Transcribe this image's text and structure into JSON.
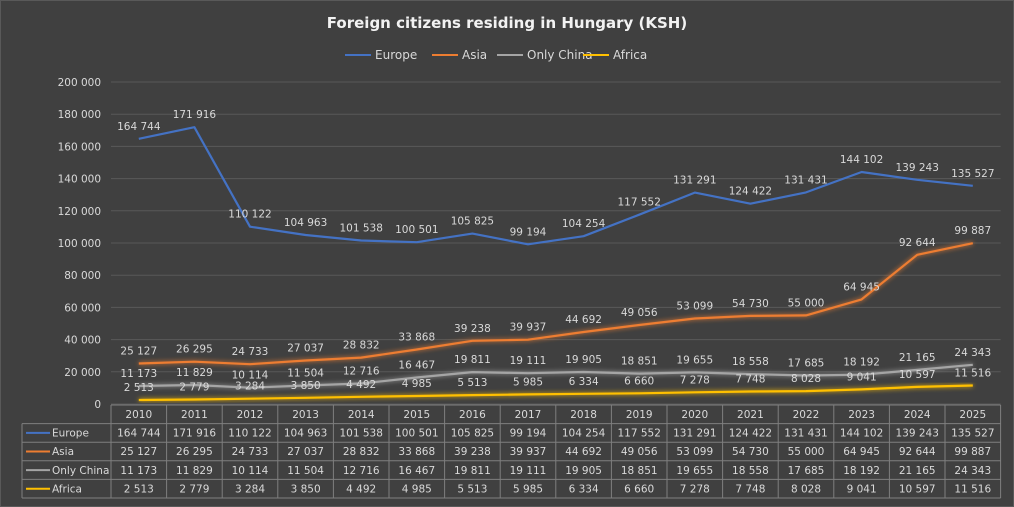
{
  "chart_data": {
    "type": "line",
    "title": "Foreign citizens residing in Hungary (KSH)",
    "categories": [
      "2010",
      "2011",
      "2012",
      "2013",
      "2014",
      "2015",
      "2016",
      "2017",
      "2018",
      "2019",
      "2020",
      "2021",
      "2022",
      "2023",
      "2024",
      "2025"
    ],
    "ylim": [
      0,
      200000
    ],
    "yticks": [
      "0",
      "20 000",
      "40 000",
      "60 000",
      "80 000",
      "100 000",
      "120 000",
      "140 000",
      "160 000",
      "180 000",
      "200 000"
    ],
    "grid": true,
    "legend": "top",
    "data_table": true,
    "series": [
      {
        "name": "Europe",
        "color": "#4472C4",
        "values": [
          164744,
          171916,
          110122,
          104963,
          101538,
          100501,
          105825,
          99194,
          104254,
          117552,
          131291,
          124422,
          131431,
          144102,
          139243,
          135527
        ],
        "labels": [
          "164 744",
          "171 916",
          "110 122",
          "104 963",
          "101 538",
          "100 501",
          "105 825",
          "99 194",
          "104 254",
          "117 552",
          "131 291",
          "124 422",
          "131 431",
          "144 102",
          "139 243",
          "135 527"
        ]
      },
      {
        "name": "Asia",
        "color": "#ED7D31",
        "values": [
          25127,
          26295,
          24733,
          27037,
          28832,
          33868,
          39238,
          39937,
          44692,
          49056,
          53099,
          54730,
          55000,
          64945,
          92644,
          99887
        ],
        "labels": [
          "25 127",
          "26 295",
          "24 733",
          "27 037",
          "28 832",
          "33 868",
          "39 238",
          "39 937",
          "44 692",
          "49 056",
          "53 099",
          "54 730",
          "55 000",
          "64 945",
          "92 644",
          "99 887"
        ]
      },
      {
        "name": "Only China",
        "color": "#A5A5A5",
        "values": [
          11173,
          11829,
          10114,
          11504,
          12716,
          16467,
          19811,
          19111,
          19905,
          18851,
          19655,
          18558,
          17685,
          18192,
          21165,
          24343
        ],
        "labels": [
          "11 173",
          "11 829",
          "10 114",
          "11 504",
          "12 716",
          "16 467",
          "19 811",
          "19 111",
          "19 905",
          "18 851",
          "19 655",
          "18 558",
          "17 685",
          "18 192",
          "21 165",
          "24 343"
        ]
      },
      {
        "name": "Africa",
        "color": "#FFC000",
        "values": [
          2513,
          2779,
          3284,
          3850,
          4492,
          4985,
          5513,
          5985,
          6334,
          6660,
          7278,
          7748,
          8028,
          9041,
          10597,
          11516
        ],
        "labels": [
          "2 513",
          "2 779",
          "3 284",
          "3 850",
          "4 492",
          "4 985",
          "5 513",
          "5 985",
          "6 334",
          "6 660",
          "7 278",
          "7 748",
          "8 028",
          "9 041",
          "10 597",
          "11 516"
        ]
      }
    ]
  }
}
